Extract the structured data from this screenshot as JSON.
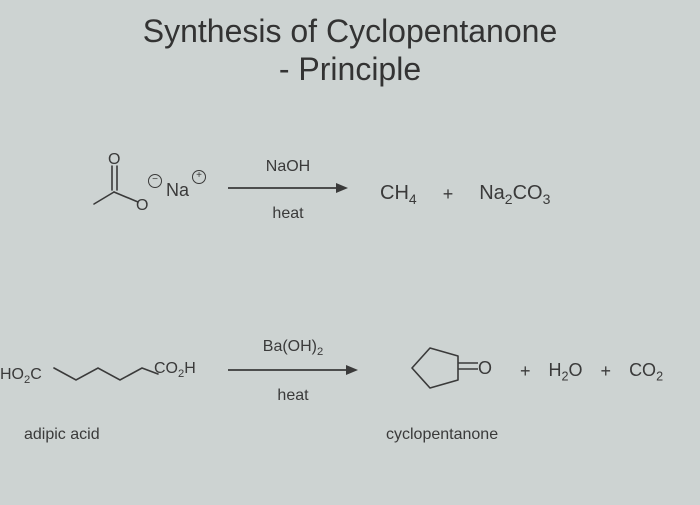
{
  "title": "Synthesis of Cyclopentanone\n- Principle",
  "colors": {
    "background": "#cdd3d2",
    "text": "#3a3a3a",
    "line": "#3a3a3a"
  },
  "typography": {
    "title_fontsize": 32,
    "body_fontsize": 16,
    "formula_fontsize": 20
  },
  "reaction1": {
    "reactant": {
      "type": "sodium-acetate-structure",
      "charge_minus": "⊖",
      "charge_plus": "⊕",
      "cation": "Na",
      "o_label": "O"
    },
    "arrow": {
      "reagent_top": "NaOH",
      "reagent_bottom": "heat"
    },
    "products": {
      "p1_html": "CH<sub>4</sub>",
      "plus": "+",
      "p2_html": "Na<sub>2</sub>CO<sub>3</sub>"
    }
  },
  "reaction2": {
    "reactant": {
      "type": "adipic-acid-structure",
      "left_group_html": "HO<sub>2</sub>C",
      "right_group_html": "CO<sub>2</sub>H",
      "name": "adipic acid"
    },
    "arrow": {
      "reagent_top_html": "Ba(OH)<sub>2</sub>",
      "reagent_bottom": "heat"
    },
    "product_main": {
      "type": "cyclopentanone-structure",
      "o_label": "O",
      "name": "cyclopentanone"
    },
    "byproducts": {
      "plus": "+",
      "p1_html": "H<sub>2</sub>O",
      "p2_html": "CO<sub>2</sub>"
    }
  },
  "arrow_svg": {
    "stroke": "#3a3a3a",
    "stroke_width": 1.8,
    "head_size": 7
  },
  "structure_line": {
    "stroke": "#3a3a3a",
    "stroke_width": 1.6
  }
}
